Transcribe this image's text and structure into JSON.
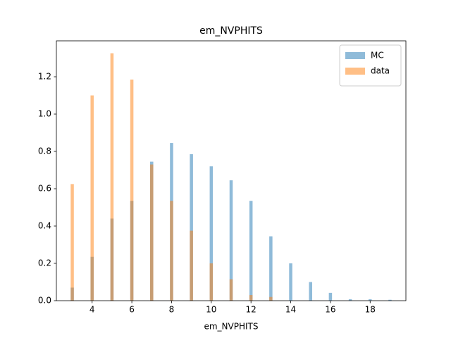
{
  "chart_data": {
    "type": "bar",
    "title": "em_NVPHITS",
    "x_label": "em_NVPHITS",
    "x": [
      3,
      4,
      5,
      6,
      7,
      8,
      9,
      10,
      11,
      12,
      13,
      14,
      15,
      16,
      17,
      18,
      19
    ],
    "series": [
      {
        "name": "MC",
        "color": "#1f77b4",
        "values": [
          0.07,
          0.235,
          0.44,
          0.535,
          0.745,
          0.845,
          0.785,
          0.72,
          0.645,
          0.535,
          0.345,
          0.2,
          0.1,
          0.042,
          0.008,
          0.008,
          0.005
        ]
      },
      {
        "name": "data",
        "color": "#ff7f0e",
        "values": [
          0.625,
          1.1,
          1.326,
          1.185,
          0.73,
          0.535,
          0.375,
          0.2,
          0.115,
          0.03,
          0.02,
          0,
          0,
          0,
          0,
          0,
          0
        ]
      }
    ],
    "xlim": [
      2.2,
      19.8
    ],
    "xticks": [
      4,
      6,
      8,
      10,
      12,
      14,
      16,
      18
    ],
    "ylim": [
      0,
      1.3925
    ],
    "yticks": [
      {
        "value": 0,
        "label": "0.0"
      },
      {
        "value": 0.2,
        "label": "0.2"
      },
      {
        "value": 0.4,
        "label": "0.4"
      },
      {
        "value": 0.6,
        "label": "0.6"
      },
      {
        "value": 0.8,
        "label": "0.8"
      },
      {
        "value": 1.0,
        "label": "1.0"
      },
      {
        "value": 1.2,
        "label": "1.2"
      }
    ],
    "legend": "upper right",
    "grid": false
  }
}
